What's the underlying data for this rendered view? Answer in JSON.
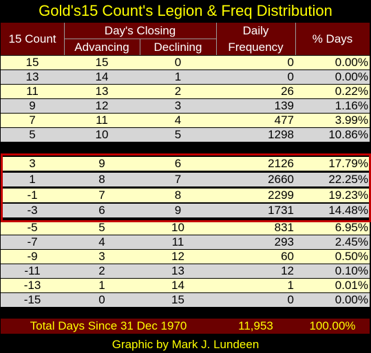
{
  "title": "Gold's15 Count's Legion & Freq Distribution",
  "footer": "Graphic by Mark J. Lundeen",
  "headers": {
    "count": "15 Count",
    "closing": "Day's Closing",
    "advancing": "Advancing",
    "declining": "Declining",
    "daily": "Daily",
    "frequency": "Frequency",
    "pct_days": "% Days"
  },
  "rows": [
    {
      "count": "15",
      "adv": "15",
      "dec": "0",
      "freq": "0",
      "pct": "0.00%"
    },
    {
      "count": "13",
      "adv": "14",
      "dec": "1",
      "freq": "0",
      "pct": "0.00%"
    },
    {
      "count": "11",
      "adv": "13",
      "dec": "2",
      "freq": "26",
      "pct": "0.22%"
    },
    {
      "count": "9",
      "adv": "12",
      "dec": "3",
      "freq": "139",
      "pct": "1.16%"
    },
    {
      "count": "7",
      "adv": "11",
      "dec": "4",
      "freq": "477",
      "pct": "3.99%"
    },
    {
      "count": "5",
      "adv": "10",
      "dec": "5",
      "freq": "1298",
      "pct": "10.86%"
    },
    {
      "count": "3",
      "adv": "9",
      "dec": "6",
      "freq": "2126",
      "pct": "17.79%"
    },
    {
      "count": "1",
      "adv": "8",
      "dec": "7",
      "freq": "2660",
      "pct": "22.25%"
    },
    {
      "count": "-1",
      "adv": "7",
      "dec": "8",
      "freq": "2299",
      "pct": "19.23%"
    },
    {
      "count": "-3",
      "adv": "6",
      "dec": "9",
      "freq": "1731",
      "pct": "14.48%"
    },
    {
      "count": "-5",
      "adv": "5",
      "dec": "10",
      "freq": "831",
      "pct": "6.95%"
    },
    {
      "count": "-7",
      "adv": "4",
      "dec": "11",
      "freq": "293",
      "pct": "2.45%"
    },
    {
      "count": "-9",
      "adv": "3",
      "dec": "12",
      "freq": "60",
      "pct": "0.50%"
    },
    {
      "count": "-11",
      "adv": "2",
      "dec": "13",
      "freq": "12",
      "pct": "0.10%"
    },
    {
      "count": "-13",
      "adv": "1",
      "dec": "14",
      "freq": "1",
      "pct": "0.01%"
    },
    {
      "count": "-15",
      "adv": "0",
      "dec": "15",
      "freq": "0",
      "pct": "0.00%"
    }
  ],
  "total": {
    "label": "Total Days Since 31 Dec 1970",
    "freq": "11,953",
    "pct": "100.00%"
  },
  "colors": {
    "header_bg": "#6b0000",
    "title_text": "#ffff00",
    "odd_row": "#ffffc4",
    "even_row": "#d6d6d6",
    "highlight_border": "#c40000"
  }
}
